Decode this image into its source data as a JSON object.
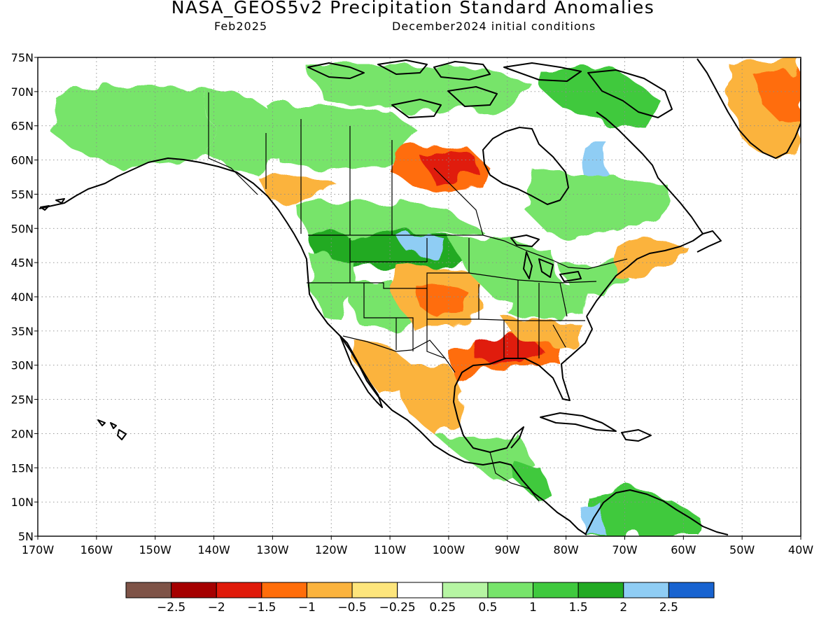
{
  "title": "NASA_GEOS5v2 Precipitation Standard Anomalies",
  "subtitle_left": "Feb2025",
  "subtitle_right": "December2024 initial conditions",
  "map": {
    "lon_range": [
      -170,
      -40
    ],
    "lat_range": [
      5,
      75
    ],
    "lat_ticks": [
      "75N",
      "70N",
      "65N",
      "60N",
      "55N",
      "50N",
      "45N",
      "40N",
      "35N",
      "30N",
      "25N",
      "20N",
      "15N",
      "10N",
      "5N"
    ],
    "lon_ticks": [
      "170W",
      "160W",
      "150W",
      "140W",
      "130W",
      "120W",
      "110W",
      "100W",
      "90W",
      "80W",
      "70W",
      "60W",
      "50W",
      "40W"
    ],
    "grid": true
  },
  "colorbar": {
    "colors": [
      "#7e5347",
      "#a50000",
      "#e01a0a",
      "#ff6d0a",
      "#fbb33e",
      "#fde57c",
      "#ffffff",
      "#b6f5a3",
      "#77e46b",
      "#3fc93e",
      "#22aa23",
      "#8fcdf4",
      "#1863d0"
    ],
    "labels": [
      "−2.5",
      "−2",
      "−1.5",
      "−1",
      "−0.5",
      "−0.25",
      "0.25",
      "0.5",
      "1",
      "1.5",
      "2",
      "2.5"
    ]
  },
  "anomaly_regions": [
    {
      "name": "alaska",
      "level": 0.6
    },
    {
      "name": "yukon",
      "level": 0.7
    },
    {
      "name": "nw-territories",
      "level": 0.8
    },
    {
      "name": "nunavut-north",
      "level": 0.6
    },
    {
      "name": "hudson-bay-west",
      "level": -1.2
    },
    {
      "name": "hudson-center",
      "level": -1.8
    },
    {
      "name": "bc-coast",
      "level": -0.6
    },
    {
      "name": "prairies",
      "level": 0.9
    },
    {
      "name": "montana-dakotas",
      "level": 1.6
    },
    {
      "name": "dakota-core",
      "level": 2.3
    },
    {
      "name": "quebec-west",
      "level": 2.4
    },
    {
      "name": "quebec-east",
      "level": 0.8
    },
    {
      "name": "baffin",
      "level": 1.3
    },
    {
      "name": "us-west-coast",
      "level": 0.6
    },
    {
      "name": "great-basin",
      "level": 0.7
    },
    {
      "name": "central-plains",
      "level": -0.9
    },
    {
      "name": "kansas-core",
      "level": -1.1
    },
    {
      "name": "midwest",
      "level": 0.8
    },
    {
      "name": "ohio-valley",
      "level": 0.6
    },
    {
      "name": "appalachia",
      "level": 0.5
    },
    {
      "name": "gulf-coast",
      "level": -1.1
    },
    {
      "name": "louisiana-core",
      "level": -1.6
    },
    {
      "name": "southeast",
      "level": -0.7
    },
    {
      "name": "new-england",
      "level": -0.6
    },
    {
      "name": "nw-mexico",
      "level": -0.8
    },
    {
      "name": "ne-mexico",
      "level": -1.0
    },
    {
      "name": "central-america",
      "level": 0.7
    },
    {
      "name": "nicaragua",
      "level": 1.2
    },
    {
      "name": "colombia-venezuela",
      "level": 1.2
    },
    {
      "name": "andes",
      "level": 2.3
    },
    {
      "name": "greenland",
      "level": -0.9
    },
    {
      "name": "greenland-core",
      "level": -1.5
    }
  ]
}
